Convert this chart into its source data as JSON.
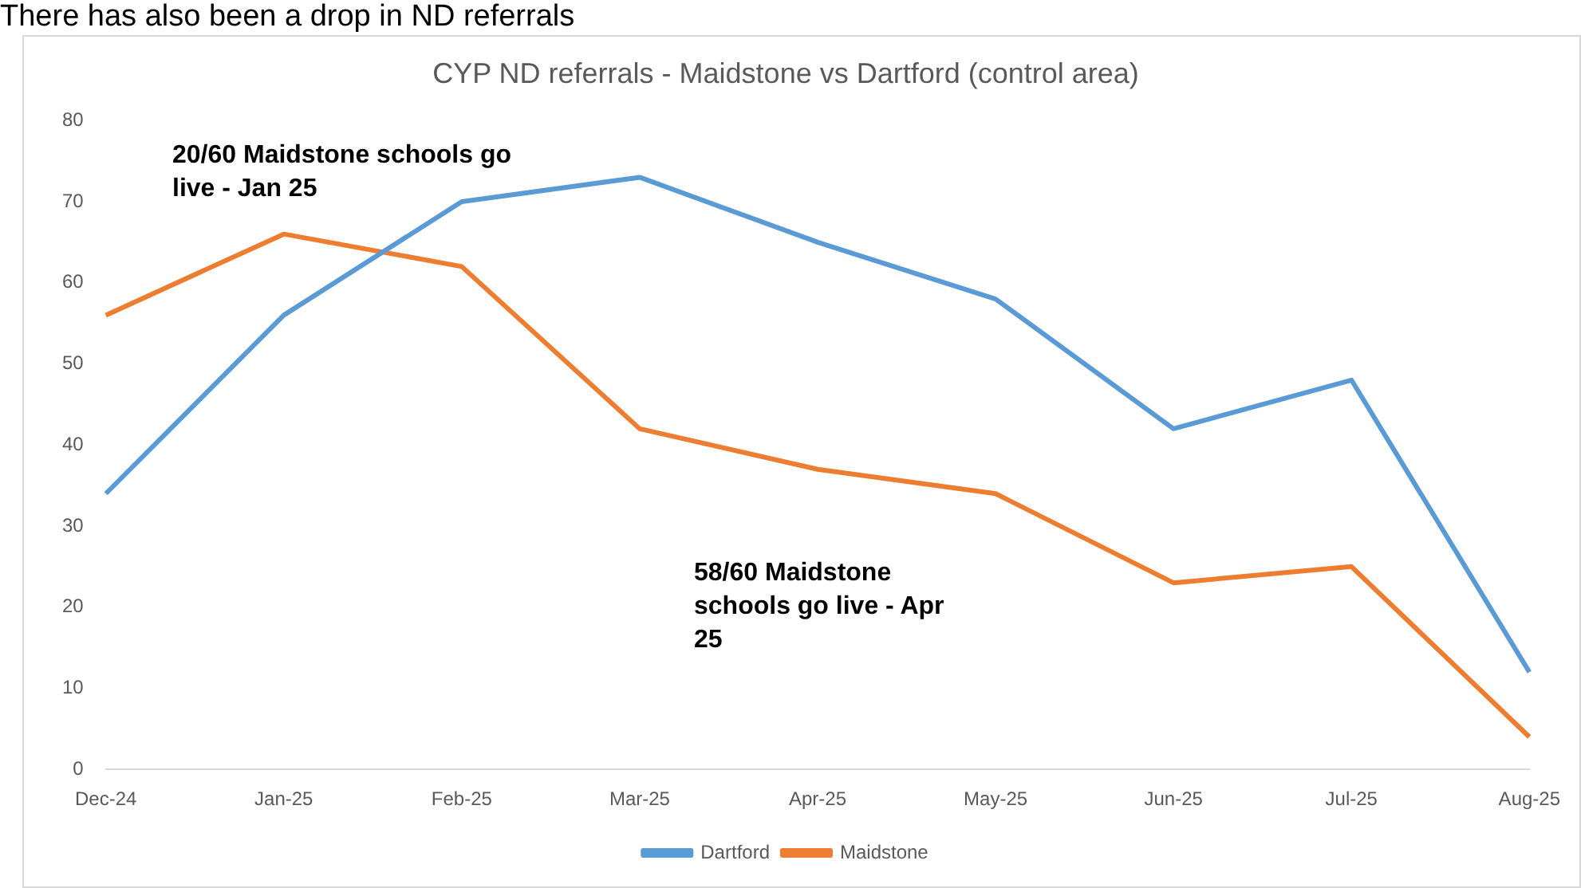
{
  "chart_data": {
    "type": "line",
    "title": "CYP ND referrals - Maidstone vs Dartford (control area)",
    "categories": [
      "Dec-24",
      "Jan-25",
      "Feb-25",
      "Mar-25",
      "Apr-25",
      "May-25",
      "Jun-25",
      "Jul-25",
      "Aug-25"
    ],
    "series": [
      {
        "name": "Dartford",
        "color": "#5b9bd5",
        "values": [
          34,
          56,
          70,
          73,
          65,
          58,
          42,
          48,
          12
        ]
      },
      {
        "name": "Maidstone",
        "color": "#ed7d31",
        "values": [
          56,
          66,
          62,
          42,
          37,
          34,
          23,
          25,
          4
        ]
      }
    ],
    "ylim": [
      0,
      80
    ],
    "yticks": [
      0,
      10,
      20,
      30,
      40,
      50,
      60,
      70,
      80
    ],
    "grid": false,
    "legend": "bottom",
    "marker": "none",
    "line_style": "solid",
    "annotations": [
      "There has also been a drop in ND referrals",
      "20/60 Maidstone schools go live - Jan 25",
      "58/60 Maidstone schools go live - Apr 25"
    ]
  }
}
